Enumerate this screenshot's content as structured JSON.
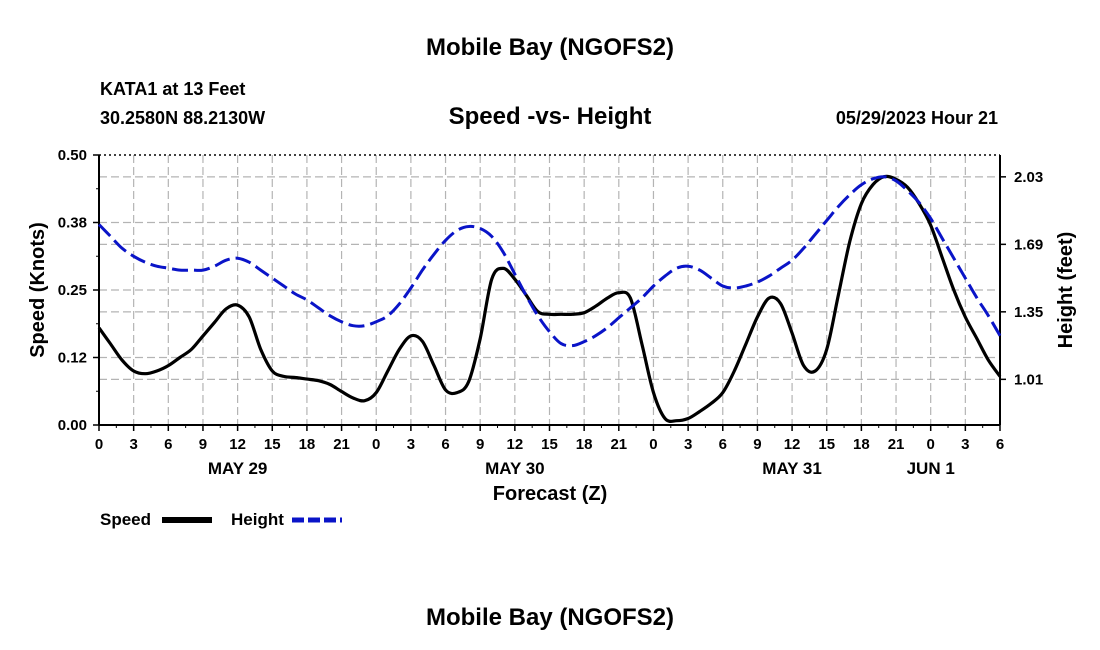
{
  "header": {
    "title": "Mobile Bay (NGOFS2)",
    "station": "KATA1 at 13 Feet",
    "coords": "30.2580N  88.2130W",
    "chart_title": "Speed -vs- Height",
    "datetime": "05/29/2023 Hour 21",
    "footer_title": "Mobile Bay (NGOFS2)"
  },
  "legend": {
    "speed_label": "Speed",
    "height_label": "Height"
  },
  "colors": {
    "speed": "#000000",
    "height": "#0a14c8",
    "grid": "#b4b4b4"
  },
  "chart_data": {
    "type": "line",
    "title": "Speed -vs- Height",
    "xlabel": "Forecast (Z)",
    "ylabel": "Speed (Knots)",
    "y2label": "Height (feet)",
    "xlim": [
      0,
      78
    ],
    "ylim": [
      0,
      0.5
    ],
    "y2lim": [
      0.78,
      2.14
    ],
    "xticks": [
      0,
      3,
      6,
      9,
      12,
      15,
      18,
      21,
      24,
      27,
      30,
      33,
      36,
      39,
      42,
      45,
      48,
      51,
      54,
      57,
      60,
      63,
      66,
      69,
      72,
      75,
      78
    ],
    "xtick_labels": [
      "0",
      "3",
      "6",
      "9",
      "12",
      "15",
      "18",
      "21",
      "0",
      "3",
      "6",
      "9",
      "12",
      "15",
      "18",
      "21",
      "0",
      "3",
      "6",
      "9",
      "12",
      "15",
      "18",
      "21",
      "0",
      "3",
      "6"
    ],
    "day_labels": [
      {
        "x": 12,
        "label": "MAY 29"
      },
      {
        "x": 36,
        "label": "MAY 30"
      },
      {
        "x": 60,
        "label": "MAY 31"
      },
      {
        "x": 72,
        "label": "JUN 1"
      }
    ],
    "yticks": [
      0,
      0.125,
      0.25,
      0.375,
      0.5
    ],
    "ytick_labels": [
      "0.00",
      "0.12",
      "0.25",
      "0.38",
      "0.50"
    ],
    "y2ticks": [
      1.01,
      1.35,
      1.69,
      2.03
    ],
    "y2tick_labels": [
      "1.01",
      "1.35",
      "1.69",
      "2.03"
    ],
    "grid": true,
    "series": [
      {
        "name": "Speed",
        "axis": "left",
        "style": "solid",
        "x": [
          0,
          1,
          2,
          3,
          4,
          5,
          6,
          7,
          8,
          9,
          10,
          11,
          12,
          13,
          14,
          15,
          16,
          17,
          18,
          19,
          20,
          21,
          22,
          23,
          24,
          25,
          26,
          27,
          28,
          29,
          30,
          31,
          32,
          33,
          34,
          35,
          36,
          37,
          38,
          39,
          40,
          41,
          42,
          43,
          44,
          45,
          46,
          47,
          48,
          49,
          50,
          51,
          52,
          53,
          54,
          55,
          56,
          57,
          58,
          59,
          60,
          61,
          62,
          63,
          64,
          65,
          66,
          67,
          68,
          69,
          70,
          71,
          72,
          73,
          74,
          75,
          76,
          77,
          78
        ],
        "values": [
          0.18,
          0.15,
          0.12,
          0.1,
          0.095,
          0.1,
          0.11,
          0.125,
          0.14,
          0.165,
          0.19,
          0.215,
          0.222,
          0.2,
          0.14,
          0.1,
          0.09,
          0.088,
          0.085,
          0.082,
          0.075,
          0.062,
          0.05,
          0.045,
          0.06,
          0.1,
          0.14,
          0.165,
          0.155,
          0.11,
          0.065,
          0.06,
          0.08,
          0.16,
          0.27,
          0.29,
          0.27,
          0.24,
          0.21,
          0.205,
          0.205,
          0.205,
          0.208,
          0.22,
          0.235,
          0.245,
          0.235,
          0.15,
          0.06,
          0.012,
          0.008,
          0.012,
          0.025,
          0.04,
          0.06,
          0.1,
          0.15,
          0.2,
          0.235,
          0.225,
          0.17,
          0.11,
          0.1,
          0.14,
          0.24,
          0.34,
          0.41,
          0.445,
          0.46,
          0.455,
          0.44,
          0.41,
          0.37,
          0.31,
          0.25,
          0.2,
          0.16,
          0.12,
          0.09
        ]
      },
      {
        "name": "Height",
        "axis": "right",
        "style": "dashed",
        "x": [
          0,
          1,
          2,
          3,
          4,
          5,
          6,
          7,
          8,
          9,
          10,
          11,
          12,
          13,
          14,
          15,
          16,
          17,
          18,
          19,
          20,
          21,
          22,
          23,
          24,
          25,
          26,
          27,
          28,
          29,
          30,
          31,
          32,
          33,
          34,
          35,
          36,
          37,
          38,
          39,
          40,
          41,
          42,
          43,
          44,
          45,
          46,
          47,
          48,
          49,
          50,
          51,
          52,
          53,
          54,
          55,
          56,
          57,
          58,
          59,
          60,
          61,
          62,
          63,
          64,
          65,
          66,
          67,
          68,
          69,
          70,
          71,
          72,
          73,
          74,
          75,
          76,
          77,
          78
        ],
        "values": [
          1.79,
          1.73,
          1.67,
          1.63,
          1.6,
          1.58,
          1.57,
          1.56,
          1.56,
          1.56,
          1.58,
          1.61,
          1.62,
          1.6,
          1.56,
          1.52,
          1.48,
          1.44,
          1.41,
          1.37,
          1.33,
          1.3,
          1.28,
          1.28,
          1.3,
          1.33,
          1.39,
          1.47,
          1.56,
          1.64,
          1.71,
          1.76,
          1.78,
          1.77,
          1.73,
          1.65,
          1.54,
          1.43,
          1.33,
          1.25,
          1.19,
          1.18,
          1.2,
          1.23,
          1.27,
          1.32,
          1.37,
          1.42,
          1.48,
          1.53,
          1.57,
          1.58,
          1.56,
          1.52,
          1.48,
          1.47,
          1.48,
          1.5,
          1.53,
          1.57,
          1.61,
          1.67,
          1.74,
          1.81,
          1.88,
          1.94,
          1.99,
          2.02,
          2.03,
          2.01,
          1.96,
          1.9,
          1.82,
          1.72,
          1.62,
          1.52,
          1.42,
          1.33,
          1.23
        ]
      }
    ]
  }
}
